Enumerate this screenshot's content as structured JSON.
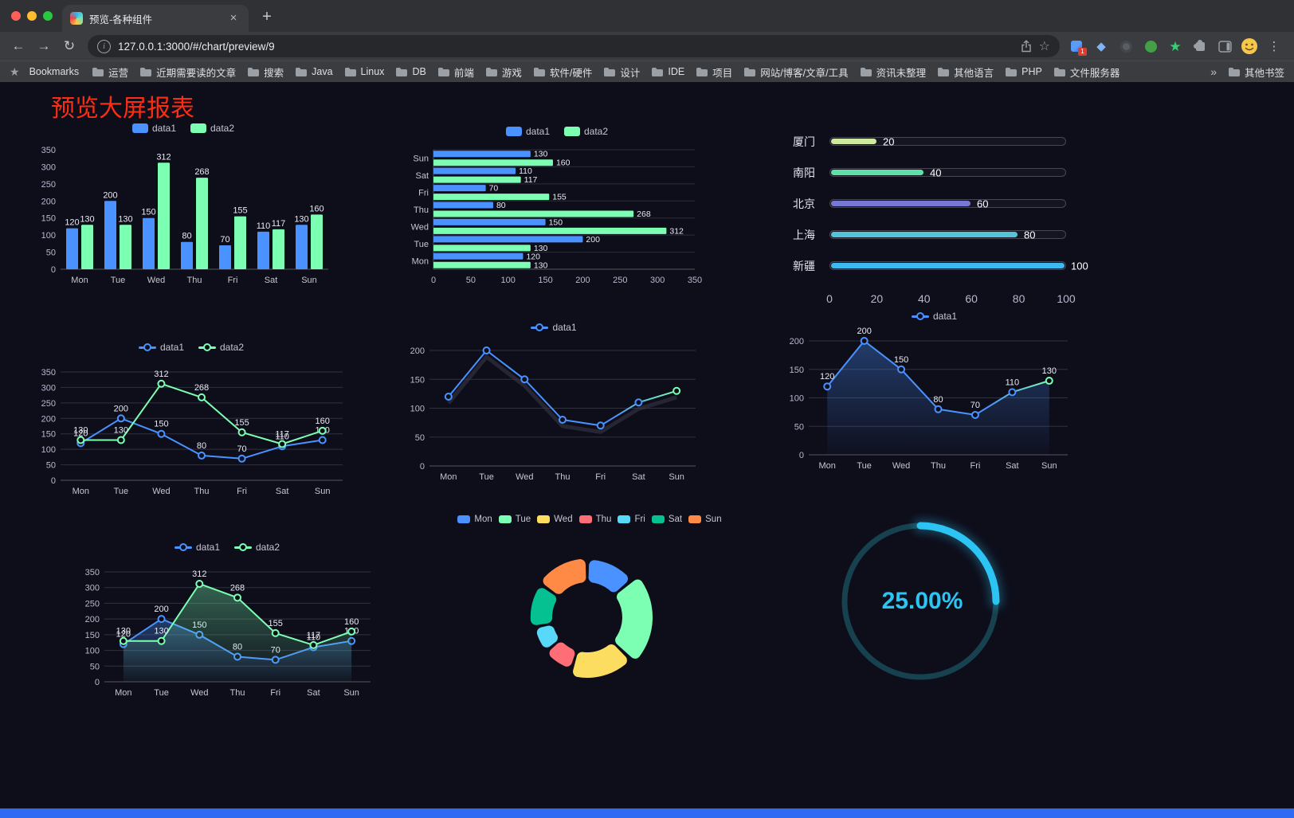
{
  "browser": {
    "tab": {
      "title": "预览-各种组件"
    },
    "address": {
      "url": "127.0.0.1:3000/#/chart/preview/9"
    },
    "extension_badge": "1",
    "bookmarks_bar": {
      "bookmarks_label": "Bookmarks",
      "folders": [
        "运营",
        "近期需要读的文章",
        "搜索",
        "Java",
        "Linux",
        "DB",
        "前端",
        "游戏",
        "软件/硬件",
        "设计",
        "IDE",
        "项目",
        "网站/博客/文章/工具",
        "资讯未整理",
        "其他语言",
        "PHP",
        "文件服务器"
      ],
      "overflow": "»",
      "other_bookmarks": "其他书签"
    }
  },
  "icons": {
    "back": "←",
    "forward": "→",
    "reload": "↻",
    "info": "i",
    "close": "×",
    "new_tab": "+",
    "star": "☆",
    "star_filled": "★",
    "more": "⋮",
    "gem": "◆"
  },
  "page": {
    "title": "预览大屏报表"
  },
  "palette": {
    "blue": "#4992ff",
    "green": "#7cffb2",
    "yellow": "#fddd60",
    "red": "#ff6e76",
    "lightblue": "#58d9f9",
    "teal": "#05c091",
    "orange": "#ff8a45"
  },
  "chart_data": [
    {
      "id": "grouped-bar",
      "type": "bar",
      "title": "",
      "categories": [
        "Mon",
        "Tue",
        "Wed",
        "Thu",
        "Fri",
        "Sat",
        "Sun"
      ],
      "series": [
        {
          "name": "data1",
          "color": "#4992ff",
          "values": [
            120,
            200,
            150,
            80,
            70,
            110,
            130
          ]
        },
        {
          "name": "data2",
          "color": "#7cffb2",
          "values": [
            130,
            130,
            312,
            268,
            155,
            117,
            160
          ]
        }
      ],
      "legend": [
        "data1",
        "data2"
      ],
      "legend_position": "top",
      "ylim": [
        0,
        350
      ],
      "yticks": [
        0,
        50,
        100,
        150,
        200,
        250,
        300,
        350
      ],
      "show_labels": true
    },
    {
      "id": "horizontal-bar",
      "type": "bar-horizontal",
      "title": "",
      "categories": [
        "Mon",
        "Tue",
        "Wed",
        "Thu",
        "Fri",
        "Sat",
        "Sun"
      ],
      "series": [
        {
          "name": "data1",
          "color": "#4992ff",
          "values": [
            120,
            200,
            150,
            80,
            70,
            110,
            130
          ]
        },
        {
          "name": "data2",
          "color": "#7cffb2",
          "values": [
            130,
            130,
            312,
            268,
            155,
            117,
            160
          ]
        }
      ],
      "legend": [
        "data1",
        "data2"
      ],
      "legend_position": "top",
      "xlim": [
        0,
        350
      ],
      "xticks": [
        0,
        50,
        100,
        150,
        200,
        250,
        300,
        350
      ],
      "show_labels": true
    },
    {
      "id": "city-progress",
      "type": "bar",
      "note": "horizontal progress bars",
      "items": [
        {
          "label": "厦门",
          "value": 20,
          "color": "#cfe8a0"
        },
        {
          "label": "南阳",
          "value": 40,
          "color": "#5fe0a8"
        },
        {
          "label": "北京",
          "value": 60,
          "color": "#7678d4"
        },
        {
          "label": "上海",
          "value": 80,
          "color": "#55c3d7"
        },
        {
          "label": "新疆",
          "value": 100,
          "color": "#3cb9ef"
        }
      ],
      "max": 100,
      "xticks": [
        0,
        20,
        40,
        60,
        80,
        100
      ]
    },
    {
      "id": "dual-line",
      "type": "line",
      "title": "",
      "categories": [
        "Mon",
        "Tue",
        "Wed",
        "Thu",
        "Fri",
        "Sat",
        "Sun"
      ],
      "series": [
        {
          "name": "data1",
          "color": "#4992ff",
          "values": [
            120,
            200,
            150,
            80,
            70,
            110,
            130
          ]
        },
        {
          "name": "data2",
          "color": "#7cffb2",
          "values": [
            130,
            130,
            312,
            268,
            155,
            117,
            160
          ]
        }
      ],
      "legend": [
        "data1",
        "data2"
      ],
      "legend_position": "top",
      "ylim": [
        0,
        350
      ],
      "yticks": [
        0,
        50,
        100,
        150,
        200,
        250,
        300,
        350
      ],
      "show_labels": true
    },
    {
      "id": "gradient-line",
      "type": "line",
      "title": "",
      "categories": [
        "Mon",
        "Tue",
        "Wed",
        "Thu",
        "Fri",
        "Sat",
        "Sun"
      ],
      "series": [
        {
          "name": "data1",
          "color": "#4992ff",
          "gradient": [
            "#4992ff",
            "#7cffb2"
          ],
          "shadow": true,
          "values": [
            120,
            200,
            150,
            80,
            70,
            110,
            130
          ]
        }
      ],
      "legend": [
        "data1"
      ],
      "legend_position": "top",
      "ylim": [
        0,
        200
      ],
      "yticks": [
        0,
        50,
        100,
        150,
        200
      ],
      "show_labels": false
    },
    {
      "id": "area-line",
      "type": "area",
      "title": "",
      "categories": [
        "Mon",
        "Tue",
        "Wed",
        "Thu",
        "Fri",
        "Sat",
        "Sun"
      ],
      "series": [
        {
          "name": "data1",
          "color": "#4992ff",
          "gradient": [
            "#4992ff",
            "#7cffb2"
          ],
          "area": true,
          "values": [
            120,
            200,
            150,
            80,
            70,
            110,
            130
          ]
        }
      ],
      "legend": [
        "data1"
      ],
      "legend_position": "top",
      "ylim": [
        0,
        200
      ],
      "yticks": [
        0,
        50,
        100,
        150,
        200
      ],
      "show_labels": true
    },
    {
      "id": "dual-area-line",
      "type": "area",
      "title": "",
      "categories": [
        "Mon",
        "Tue",
        "Wed",
        "Thu",
        "Fri",
        "Sat",
        "Sun"
      ],
      "series": [
        {
          "name": "data1",
          "color": "#4992ff",
          "area": true,
          "values": [
            120,
            200,
            150,
            80,
            70,
            110,
            130
          ]
        },
        {
          "name": "data2",
          "color": "#7cffb2",
          "area": true,
          "values": [
            130,
            130,
            312,
            268,
            155,
            117,
            160
          ]
        }
      ],
      "legend": [
        "data1",
        "data2"
      ],
      "legend_position": "top",
      "ylim": [
        0,
        350
      ],
      "yticks": [
        0,
        50,
        100,
        150,
        200,
        250,
        300,
        350
      ],
      "show_labels": true
    },
    {
      "id": "rose-pie",
      "type": "pie",
      "title": "",
      "labels": [
        "Mon",
        "Tue",
        "Wed",
        "Thu",
        "Fri",
        "Sat",
        "Sun"
      ],
      "values": [
        120,
        200,
        150,
        80,
        70,
        110,
        130
      ],
      "colors": [
        "#4992ff",
        "#7cffb2",
        "#fddd60",
        "#ff6e76",
        "#58d9f9",
        "#05c091",
        "#ff8a45"
      ],
      "legend_position": "top",
      "rose": true,
      "donut": true
    },
    {
      "id": "ring-gauge",
      "type": "gauge",
      "percent": 25,
      "label": "25.00%",
      "color": "#2bc4f3",
      "track": "#17414e"
    }
  ]
}
